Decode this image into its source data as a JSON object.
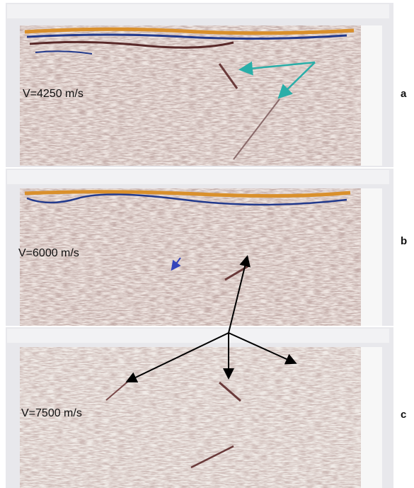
{
  "panels": [
    {
      "velocity": "V=4250 m/s",
      "label": "a"
    },
    {
      "velocity": "V=6000 m/s",
      "label": "b"
    },
    {
      "velocity": "V=7500 m/s",
      "label": "c"
    }
  ]
}
